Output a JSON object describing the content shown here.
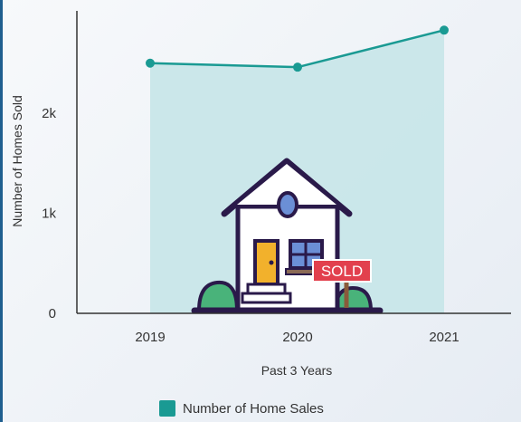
{
  "chart_data": {
    "type": "area",
    "categories": [
      "2019",
      "2020",
      "2021"
    ],
    "series": [
      {
        "name": "Number of Home Sales",
        "values": [
          2500,
          2460,
          2830
        ]
      }
    ],
    "xlabel": "Past 3 Years",
    "ylabel": "Number of Homes Sold",
    "yticks": [
      {
        "value": 0,
        "label": "0"
      },
      {
        "value": 1000,
        "label": "1k"
      },
      {
        "value": 2000,
        "label": "2k"
      }
    ],
    "ylim": [
      0,
      3000
    ],
    "grid": false,
    "legend": "bottom",
    "colors": {
      "line": "#1a9a93",
      "fill": "#c8e6e9",
      "swatch": "#1a9a93"
    }
  },
  "illustration": {
    "icon": "house-sold-icon",
    "sign_text": "SOLD",
    "colors": {
      "roof": "#2a1a4a",
      "wall": "#ffffff",
      "door": "#f2b12c",
      "window": "#6b8fd6",
      "bush": "#49b37a",
      "sign": "#e2404d"
    }
  }
}
